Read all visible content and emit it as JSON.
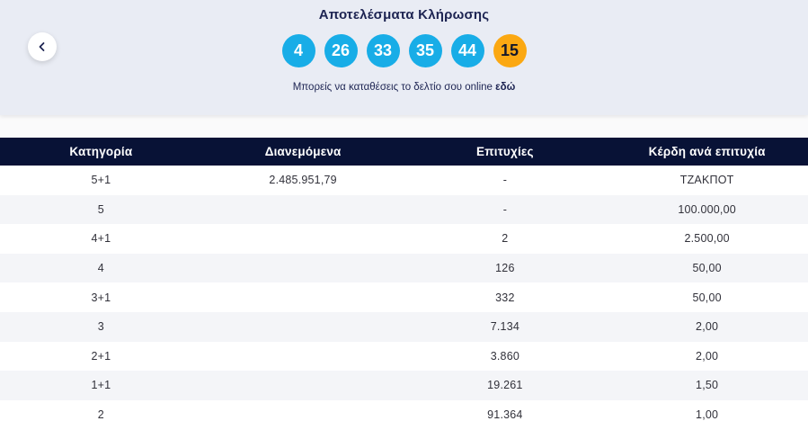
{
  "hero": {
    "title": "Αποτελέσματα Κλήρωσης",
    "numbers": [
      {
        "value": "4",
        "type": "main"
      },
      {
        "value": "26",
        "type": "main"
      },
      {
        "value": "33",
        "type": "main"
      },
      {
        "value": "35",
        "type": "main"
      },
      {
        "value": "44",
        "type": "main"
      },
      {
        "value": "15",
        "type": "bonus"
      }
    ],
    "subtitle_text": "Μπορείς να καταθέσεις το δελτίο σου online",
    "subtitle_link": "εδώ"
  },
  "colors": {
    "hero_background": "#e9ecf4",
    "main_number_circle": "#18ade7",
    "bonus_number_circle": "#fba812",
    "table_header_background": "#081236",
    "alt_row_background": "#f4f5f8",
    "navy_text": "#1d2452"
  },
  "table": {
    "headers": [
      "Κατηγορία",
      "Διανεμόμενα",
      "Επιτυχίες",
      "Κέρδη ανά επιτυχία"
    ],
    "rows": [
      [
        "5+1",
        "2.485.951,79",
        "-",
        "ΤΖΑΚΠΟΤ"
      ],
      [
        "5",
        "",
        "-",
        "100.000,00"
      ],
      [
        "4+1",
        "",
        "2",
        "2.500,00"
      ],
      [
        "4",
        "",
        "126",
        "50,00"
      ],
      [
        "3+1",
        "",
        "332",
        "50,00"
      ],
      [
        "3",
        "",
        "7.134",
        "2,00"
      ],
      [
        "2+1",
        "",
        "3.860",
        "2,00"
      ],
      [
        "1+1",
        "",
        "19.261",
        "1,50"
      ],
      [
        "2",
        "",
        "91.364",
        "1,00"
      ]
    ]
  }
}
